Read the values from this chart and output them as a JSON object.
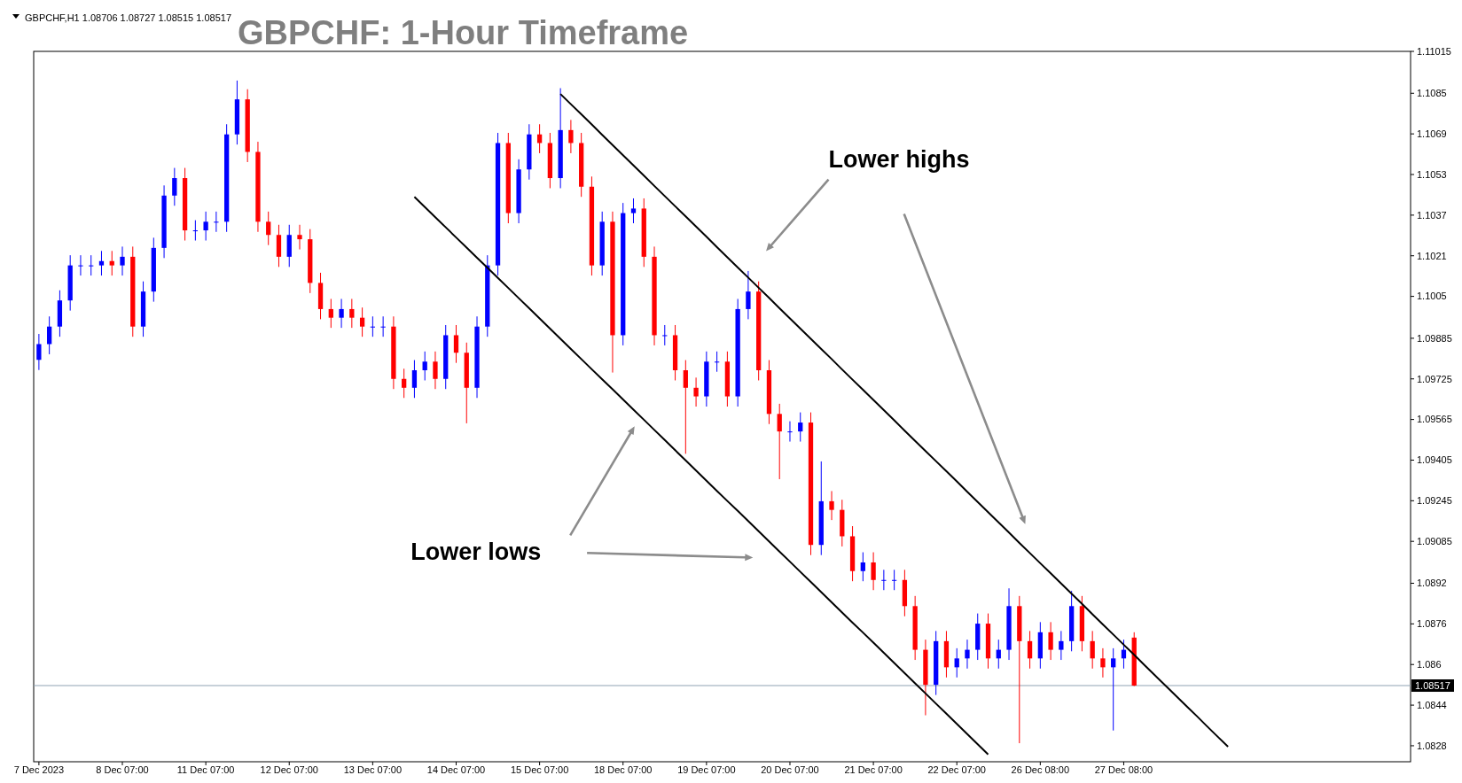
{
  "chart_data": {
    "type": "candlestick",
    "title": "GBPCHF: 1-Hour Timeframe",
    "annotations": [
      "GBPCHF,H1  1.08706 1.08727 1.08515 1.08517",
      "Lower highs",
      "Lower lows"
    ],
    "categories": [
      "7 Dec 2023",
      null,
      null,
      null,
      null,
      null,
      null,
      null,
      "8 Dec 07:00",
      null,
      null,
      null,
      null,
      null,
      null,
      null,
      "11 Dec 07:00",
      null,
      null,
      null,
      null,
      null,
      null,
      null,
      "12 Dec 07:00",
      null,
      null,
      null,
      null,
      null,
      null,
      null,
      "13 Dec 07:00",
      null,
      null,
      null,
      null,
      null,
      null,
      null,
      "14 Dec 07:00",
      null,
      null,
      null,
      null,
      null,
      null,
      null,
      "15 Dec 07:00",
      null,
      null,
      null,
      null,
      null,
      null,
      null,
      "18 Dec 07:00",
      null,
      null,
      null,
      null,
      null,
      null,
      null,
      "19 Dec 07:00",
      null,
      null,
      null,
      null,
      null,
      null,
      null,
      "20 Dec 07:00",
      null,
      null,
      null,
      null,
      null,
      null,
      null,
      "21 Dec 07:00",
      null,
      null,
      null,
      null,
      null,
      null,
      null,
      "22 Dec 07:00",
      null,
      null,
      null,
      null,
      null,
      null,
      null,
      "26 Dec 08:00",
      null,
      null,
      null,
      null,
      null,
      null,
      null,
      "27 Dec 08:00",
      null,
      null,
      null,
      null,
      null,
      null,
      null,
      null,
      null,
      null,
      null,
      null,
      null,
      null,
      null,
      null,
      null,
      null,
      null,
      null,
      null,
      null,
      null,
      null,
      null,
      null,
      null
    ],
    "ylim": [
      1.08217,
      1.11015
    ],
    "yticks": [
      1.11015,
      1.1085,
      1.1069,
      1.1053,
      1.1037,
      1.1021,
      1.1005,
      1.09885,
      1.09725,
      1.09565,
      1.09405,
      1.09245,
      1.09085,
      1.0892,
      1.0876,
      1.086,
      1.0844,
      1.0828
    ],
    "ohlc": [
      [
        1.098,
        1.09902,
        1.0976,
        1.09862
      ],
      [
        1.09862,
        1.09971,
        1.09822,
        1.09931
      ],
      [
        1.09931,
        1.10074,
        1.09891,
        1.10034
      ],
      [
        1.10034,
        1.10212,
        1.09994,
        1.10172
      ],
      [
        1.10172,
        1.10212,
        1.10132,
        1.10172
      ],
      [
        1.10172,
        1.10212,
        1.10132,
        1.10172
      ],
      [
        1.10172,
        1.10229,
        1.10132,
        1.10189
      ],
      [
        1.10189,
        1.10229,
        1.10132,
        1.10172
      ],
      [
        1.10172,
        1.10246,
        1.10132,
        1.10206
      ],
      [
        1.10206,
        1.10246,
        1.09891,
        1.09931
      ],
      [
        1.09931,
        1.10109,
        1.09891,
        1.10069
      ],
      [
        1.10069,
        1.10281,
        1.10029,
        1.10241
      ],
      [
        1.10241,
        1.10487,
        1.10201,
        1.10447
      ],
      [
        1.10447,
        1.10556,
        1.10407,
        1.10516
      ],
      [
        1.10516,
        1.10556,
        1.1027,
        1.1031
      ],
      [
        1.1031,
        1.1035,
        1.1027,
        1.1031
      ],
      [
        1.1031,
        1.10384,
        1.1027,
        1.10344
      ],
      [
        1.10344,
        1.10384,
        1.10304,
        1.10344
      ],
      [
        1.10344,
        1.10728,
        1.10304,
        1.10688
      ],
      [
        1.10688,
        1.109,
        1.10648,
        1.10826
      ],
      [
        1.10826,
        1.10866,
        1.10579,
        1.10619
      ],
      [
        1.10619,
        1.10659,
        1.10304,
        1.10344
      ],
      [
        1.10344,
        1.10384,
        1.10252,
        1.10292
      ],
      [
        1.10292,
        1.10332,
        1.10166,
        1.10206
      ],
      [
        1.10206,
        1.10332,
        1.10166,
        1.10292
      ],
      [
        1.10292,
        1.10332,
        1.10235,
        1.10275
      ],
      [
        1.10275,
        1.10315,
        1.10063,
        1.10103
      ],
      [
        1.10103,
        1.10143,
        1.0996,
        1.1
      ],
      [
        1.1,
        1.1004,
        1.09926,
        1.09966
      ],
      [
        1.09966,
        1.1004,
        1.09926,
        1.1
      ],
      [
        1.1,
        1.1004,
        1.09926,
        1.09966
      ],
      [
        1.09966,
        1.10006,
        1.09891,
        1.09931
      ],
      [
        1.09931,
        1.09971,
        1.09891,
        1.09931
      ],
      [
        1.09931,
        1.09971,
        1.09891,
        1.09931
      ],
      [
        1.09931,
        1.09971,
        1.09685,
        1.09725
      ],
      [
        1.09725,
        1.09765,
        1.0965,
        1.0969
      ],
      [
        1.0969,
        1.09799,
        1.0965,
        1.09759
      ],
      [
        1.09759,
        1.09833,
        1.09719,
        1.09793
      ],
      [
        1.09793,
        1.09833,
        1.09685,
        1.09725
      ],
      [
        1.09725,
        1.09937,
        1.09685,
        1.09897
      ],
      [
        1.09897,
        1.09937,
        1.09788,
        1.09828
      ],
      [
        1.09828,
        1.09868,
        1.0955,
        1.0969
      ],
      [
        1.0969,
        1.09971,
        1.0965,
        1.09931
      ],
      [
        1.09931,
        1.10212,
        1.09891,
        1.10172
      ],
      [
        1.10172,
        1.10694,
        1.10132,
        1.10654
      ],
      [
        1.10654,
        1.10694,
        1.10338,
        1.10378
      ],
      [
        1.10378,
        1.1059,
        1.10338,
        1.1055
      ],
      [
        1.1055,
        1.10728,
        1.1051,
        1.10688
      ],
      [
        1.10688,
        1.10728,
        1.10614,
        1.10654
      ],
      [
        1.10654,
        1.10694,
        1.10476,
        1.10516
      ],
      [
        1.10516,
        1.1087,
        1.10476,
        1.10705
      ],
      [
        1.10705,
        1.10745,
        1.10614,
        1.10654
      ],
      [
        1.10654,
        1.10694,
        1.10442,
        1.10482
      ],
      [
        1.10482,
        1.10522,
        1.10132,
        1.10172
      ],
      [
        1.10172,
        1.10384,
        1.10132,
        1.10344
      ],
      [
        1.10344,
        1.10384,
        1.0975,
        1.09897
      ],
      [
        1.09897,
        1.10418,
        1.09857,
        1.10378
      ],
      [
        1.10378,
        1.10436,
        1.10338,
        1.10396
      ],
      [
        1.10396,
        1.10436,
        1.10166,
        1.10206
      ],
      [
        1.10206,
        1.10246,
        1.09857,
        1.09897
      ],
      [
        1.09897,
        1.09937,
        1.09857,
        1.09897
      ],
      [
        1.09897,
        1.09937,
        1.09719,
        1.09759
      ],
      [
        1.09759,
        1.09799,
        1.0943,
        1.0969
      ],
      [
        1.0969,
        1.0973,
        1.09616,
        1.09656
      ],
      [
        1.09656,
        1.09833,
        1.09616,
        1.09793
      ],
      [
        1.09793,
        1.09833,
        1.09753,
        1.09793
      ],
      [
        1.09793,
        1.09833,
        1.09616,
        1.09656
      ],
      [
        1.09656,
        1.1004,
        1.09616,
        1.1
      ],
      [
        1.1,
        1.1015,
        1.0996,
        1.10069
      ],
      [
        1.10069,
        1.10109,
        1.09719,
        1.09759
      ],
      [
        1.09759,
        1.09799,
        1.09547,
        1.09587
      ],
      [
        1.09587,
        1.09627,
        1.0933,
        1.09518
      ],
      [
        1.09518,
        1.09558,
        1.09478,
        1.09518
      ],
      [
        1.09518,
        1.09593,
        1.09478,
        1.09553
      ],
      [
        1.09553,
        1.09593,
        1.09031,
        1.09071
      ],
      [
        1.09071,
        1.094,
        1.09031,
        1.09243
      ],
      [
        1.09243,
        1.09283,
        1.09169,
        1.09209
      ],
      [
        1.09209,
        1.09249,
        1.09065,
        1.09105
      ],
      [
        1.09105,
        1.09145,
        1.08928,
        1.08968
      ],
      [
        1.08968,
        1.09042,
        1.08928,
        1.09002
      ],
      [
        1.09002,
        1.09042,
        1.08893,
        1.08933
      ],
      [
        1.08933,
        1.08973,
        1.08893,
        1.08933
      ],
      [
        1.08933,
        1.08973,
        1.08893,
        1.08933
      ],
      [
        1.08933,
        1.08973,
        1.0879,
        1.0883
      ],
      [
        1.0883,
        1.0887,
        1.08618,
        1.08658
      ],
      [
        1.08658,
        1.08698,
        1.084,
        1.0852
      ],
      [
        1.0852,
        1.08732,
        1.0848,
        1.08692
      ],
      [
        1.08692,
        1.08732,
        1.08549,
        1.08589
      ],
      [
        1.08589,
        1.08664,
        1.08549,
        1.08624
      ],
      [
        1.08624,
        1.08698,
        1.08584,
        1.08658
      ],
      [
        1.08658,
        1.08801,
        1.08618,
        1.08761
      ],
      [
        1.08761,
        1.08801,
        1.08584,
        1.08624
      ],
      [
        1.08624,
        1.08698,
        1.08584,
        1.08658
      ],
      [
        1.08658,
        1.089,
        1.08618,
        1.0883
      ],
      [
        1.0883,
        1.0887,
        1.0829,
        1.08692
      ],
      [
        1.08692,
        1.08732,
        1.08584,
        1.08624
      ],
      [
        1.08624,
        1.08767,
        1.08584,
        1.08727
      ],
      [
        1.08727,
        1.08767,
        1.08618,
        1.08658
      ],
      [
        1.08658,
        1.08732,
        1.08618,
        1.08692
      ],
      [
        1.08692,
        1.0889,
        1.08652,
        1.0883
      ],
      [
        1.0883,
        1.0887,
        1.08652,
        1.08692
      ],
      [
        1.08692,
        1.08732,
        1.08584,
        1.08624
      ],
      [
        1.08624,
        1.08664,
        1.08549,
        1.08589
      ],
      [
        1.08589,
        1.08664,
        1.0834,
        1.08624
      ],
      [
        1.08624,
        1.08698,
        1.08584,
        1.08658
      ],
      [
        1.08706,
        1.08727,
        1.08515,
        1.08517
      ],
      null,
      null,
      null,
      null,
      null,
      null,
      null,
      null,
      null,
      null,
      null,
      null,
      null,
      null,
      null,
      null,
      null,
      null,
      null,
      null,
      null,
      null,
      null,
      null,
      null,
      null
    ],
    "colors": [
      "#0000ff",
      "#0000ff",
      "#0000ff",
      "#0000ff",
      "#0000ff",
      "#0000ff",
      "#0000ff",
      "#ff0000",
      "#0000ff",
      "#ff0000",
      "#0000ff",
      "#0000ff",
      "#0000ff",
      "#0000ff",
      "#ff0000",
      "#0000ff",
      "#0000ff",
      "#0000ff",
      "#0000ff",
      "#0000ff",
      "#ff0000",
      "#ff0000",
      "#ff0000",
      "#ff0000",
      "#0000ff",
      "#ff0000",
      "#ff0000",
      "#ff0000",
      "#ff0000",
      "#0000ff",
      "#ff0000",
      "#ff0000",
      "#0000ff",
      "#0000ff",
      "#ff0000",
      "#ff0000",
      "#0000ff",
      "#0000ff",
      "#ff0000",
      "#0000ff",
      "#ff0000",
      "#ff0000",
      "#0000ff",
      "#0000ff",
      "#0000ff",
      "#ff0000",
      "#0000ff",
      "#0000ff",
      "#ff0000",
      "#ff0000",
      "#0000ff",
      "#ff0000",
      "#ff0000",
      "#ff0000",
      "#0000ff",
      "#ff0000",
      "#0000ff",
      "#0000ff",
      "#ff0000",
      "#ff0000",
      "#0000ff",
      "#ff0000",
      "#ff0000",
      "#ff0000",
      "#0000ff",
      "#0000ff",
      "#ff0000",
      "#0000ff",
      "#0000ff",
      "#ff0000",
      "#ff0000",
      "#ff0000",
      "#0000ff",
      "#0000ff",
      "#ff0000",
      "#0000ff",
      "#ff0000",
      "#ff0000",
      "#ff0000",
      "#0000ff",
      "#ff0000",
      "#0000ff",
      "#0000ff",
      "#ff0000",
      "#ff0000",
      "#ff0000",
      "#0000ff",
      "#ff0000",
      "#0000ff",
      "#0000ff",
      "#0000ff",
      "#ff0000",
      "#0000ff",
      "#0000ff",
      "#ff0000",
      "#ff0000",
      "#0000ff",
      "#ff0000",
      "#0000ff",
      "#0000ff",
      "#ff0000",
      "#ff0000",
      "#ff0000",
      "#0000ff",
      "#0000ff",
      "#ff0000",
      null,
      null,
      null,
      null,
      null,
      null,
      null,
      null,
      null,
      null,
      null,
      null,
      null,
      null,
      null,
      null,
      null,
      null,
      null,
      null,
      null,
      null,
      null,
      null,
      null,
      null
    ],
    "series": [
      {
        "type": "line",
        "color": "#000000",
        "values": [
          null,
          null,
          null,
          null,
          null,
          null,
          null,
          null,
          null,
          null,
          null,
          null,
          null,
          null,
          null,
          null,
          null,
          null,
          null,
          null,
          null,
          null,
          null,
          null,
          null,
          null,
          null,
          null,
          null,
          null,
          null,
          null,
          null,
          null,
          null,
          null,
          null,
          null,
          null,
          null,
          null,
          null,
          null,
          null,
          null,
          null,
          null,
          null,
          null,
          null,
          1.10847,
          1.10807,
          1.10767,
          1.10727,
          1.10686,
          1.10646,
          1.10606,
          1.10566,
          1.10526,
          1.10485,
          1.10445,
          1.10405,
          1.10365,
          1.10325,
          1.10285,
          1.10244,
          1.10204,
          1.10164,
          1.10124,
          1.10084,
          1.10044,
          1.10003,
          1.09963,
          1.09923,
          1.09883,
          1.09843,
          1.09803,
          1.09762,
          1.09722,
          1.09682,
          1.09642,
          1.09602,
          1.09562,
          1.09521,
          1.09481,
          1.09441,
          1.09401,
          1.09361,
          1.09321,
          1.0928,
          1.0924,
          1.092,
          1.0916,
          1.0912,
          1.09079,
          1.09039,
          1.08999,
          1.08959,
          1.08919,
          1.08879,
          1.08839,
          1.08798,
          1.08758,
          1.08718,
          1.08678,
          1.08638,
          1.08597,
          1.08557,
          1.08517,
          1.08477,
          1.08437,
          1.08397,
          1.08356,
          1.08316,
          1.08276,
          null,
          null,
          null,
          null,
          null,
          null,
          null,
          null,
          null,
          null,
          null,
          null,
          null,
          null,
          null,
          null,
          null
        ]
      },
      {
        "type": "line",
        "color": "#000000",
        "values": [
          null,
          null,
          null,
          null,
          null,
          null,
          null,
          null,
          null,
          null,
          null,
          null,
          null,
          null,
          null,
          null,
          null,
          null,
          null,
          null,
          null,
          null,
          null,
          null,
          null,
          null,
          null,
          null,
          null,
          null,
          null,
          null,
          null,
          null,
          null,
          null,
          1.10442,
          1.10402,
          1.10362,
          1.10322,
          1.10282,
          1.10242,
          1.10202,
          1.10163,
          1.10123,
          1.10083,
          1.10043,
          1.10003,
          1.09963,
          1.09923,
          1.09883,
          1.09843,
          1.09803,
          1.09763,
          1.09723,
          1.09684,
          1.09644,
          1.09604,
          1.09564,
          1.09524,
          1.09484,
          1.09444,
          1.09404,
          1.09364,
          1.09324,
          1.09284,
          1.09244,
          1.09205,
          1.09165,
          1.09125,
          1.09085,
          1.09045,
          1.09005,
          1.08965,
          1.08925,
          1.08885,
          1.08845,
          1.08805,
          1.08765,
          1.08726,
          1.08686,
          1.08646,
          1.08606,
          1.08566,
          1.08526,
          1.08486,
          1.08446,
          1.08406,
          1.08366,
          1.08326,
          1.08286,
          1.08246,
          null,
          null,
          null,
          null,
          null,
          null,
          null,
          null,
          null,
          null,
          null,
          null,
          null,
          null,
          null,
          null,
          null,
          null,
          null,
          null,
          null,
          null,
          null,
          null,
          null,
          null,
          null,
          null,
          null,
          null,
          null,
          null,
          null,
          null,
          null,
          null,
          null,
          null,
          null,
          null
        ]
      }
    ],
    "ref_lines": [
      {
        "axis": "y",
        "value": 1.08517,
        "label": "1.08517",
        "color": "#8fa3b3"
      }
    ]
  }
}
